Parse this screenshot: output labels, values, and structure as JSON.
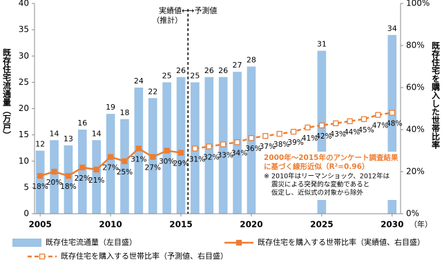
{
  "chart_data": {
    "type": "bar-line",
    "x": [
      2005,
      2006,
      2007,
      2008,
      2009,
      2010,
      2011,
      2012,
      2013,
      2014,
      2015,
      2016,
      2017,
      2018,
      2019,
      2020,
      2021,
      2022,
      2023,
      2024,
      2025,
      2026,
      2027,
      2028,
      2029,
      2030
    ],
    "xlim": [
      2004.6,
      2030.6
    ],
    "xticks": [
      2005,
      2010,
      2015,
      2020,
      2025,
      2030
    ],
    "x_unit": "（年）",
    "ylim": [
      0,
      40
    ],
    "yticks": [
      0,
      5,
      10,
      15,
      20,
      25,
      30,
      35,
      40
    ],
    "ylabel": "既存住宅流通量（万戸）",
    "y2lim": [
      0,
      100
    ],
    "y2ticks": [
      {
        "value": 0,
        "label": "0%"
      },
      {
        "value": 20,
        "label": "20%"
      },
      {
        "value": 40,
        "label": "40%"
      },
      {
        "value": 60,
        "label": "60%"
      },
      {
        "value": 80,
        "label": "80%"
      },
      {
        "value": 100,
        "label": "100%"
      }
    ],
    "y2label": "既存住宅を購入した世帯比率",
    "series": [
      {
        "name": "既存住宅流通量（左目盛）",
        "kind": "bar",
        "color": "#9dc3e6",
        "values": [
          12,
          14,
          13,
          16,
          14,
          19,
          18,
          24,
          22,
          25,
          26,
          25,
          26,
          26,
          27,
          28,
          null,
          null,
          null,
          null,
          31,
          null,
          null,
          null,
          null,
          34
        ]
      },
      {
        "name": "既存住宅を購入する世帯比率（実績値、右目盛）",
        "kind": "line",
        "axis": "y2",
        "color": "#ed7d31",
        "dashed": false,
        "marker": "filled",
        "values": [
          18,
          20,
          18,
          22,
          21,
          27,
          25,
          31,
          27,
          30,
          29,
          null,
          null,
          null,
          null,
          null,
          null,
          null,
          null,
          null,
          null,
          null,
          null,
          null,
          null,
          null
        ],
        "value_labels": [
          "18%",
          "20%",
          "18%",
          "22%",
          "21%",
          "27%",
          "25%",
          "31%",
          "27%",
          "30%",
          "29%",
          null,
          null,
          null,
          null,
          null,
          null,
          null,
          null,
          null,
          null,
          null,
          null,
          null,
          null,
          null
        ]
      },
      {
        "name": "既存住宅を購入する世帯比率（予測値、右目盛）",
        "kind": "line",
        "axis": "y2",
        "color": "#ed7d31",
        "dashed": true,
        "marker": "open",
        "values": [
          null,
          null,
          null,
          null,
          null,
          null,
          null,
          null,
          null,
          null,
          null,
          31,
          32,
          33,
          34,
          36,
          37,
          38,
          39,
          41,
          42,
          43,
          44,
          45,
          47,
          48
        ],
        "value_labels": [
          null,
          null,
          null,
          null,
          null,
          null,
          null,
          null,
          null,
          null,
          null,
          "31%",
          "32%",
          "33%",
          "34%",
          "36%",
          "37%",
          "38%",
          "39%",
          "41%",
          "42%",
          "43%",
          "44%",
          "45%",
          "47%",
          "48%"
        ]
      }
    ],
    "divider_label": "実績値←→予測値",
    "divider_sublabel": "（推計）",
    "fit_note": [
      "2000年～2015年のアンケート調査結果",
      "に基づく線形近似（R²=0.96）"
    ],
    "footnote": [
      "※ 2010年はリーマンショック、2012年は",
      "震災による突発的な変動であると",
      "仮定し、近似式の対象から除外"
    ]
  }
}
